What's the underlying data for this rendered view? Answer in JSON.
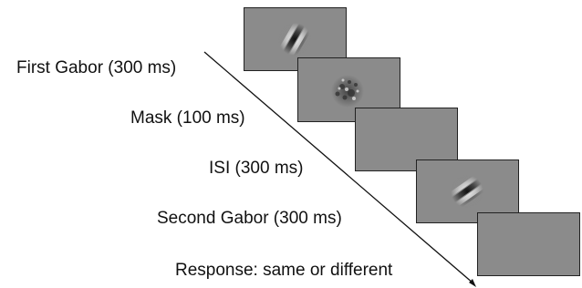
{
  "steps": [
    {
      "label": "First Gabor (300 ms)"
    },
    {
      "label": "Mask (100 ms)"
    },
    {
      "label": "ISI (300 ms)"
    },
    {
      "label": "Second Gabor (300 ms)"
    },
    {
      "label": "Response: same or different"
    }
  ]
}
